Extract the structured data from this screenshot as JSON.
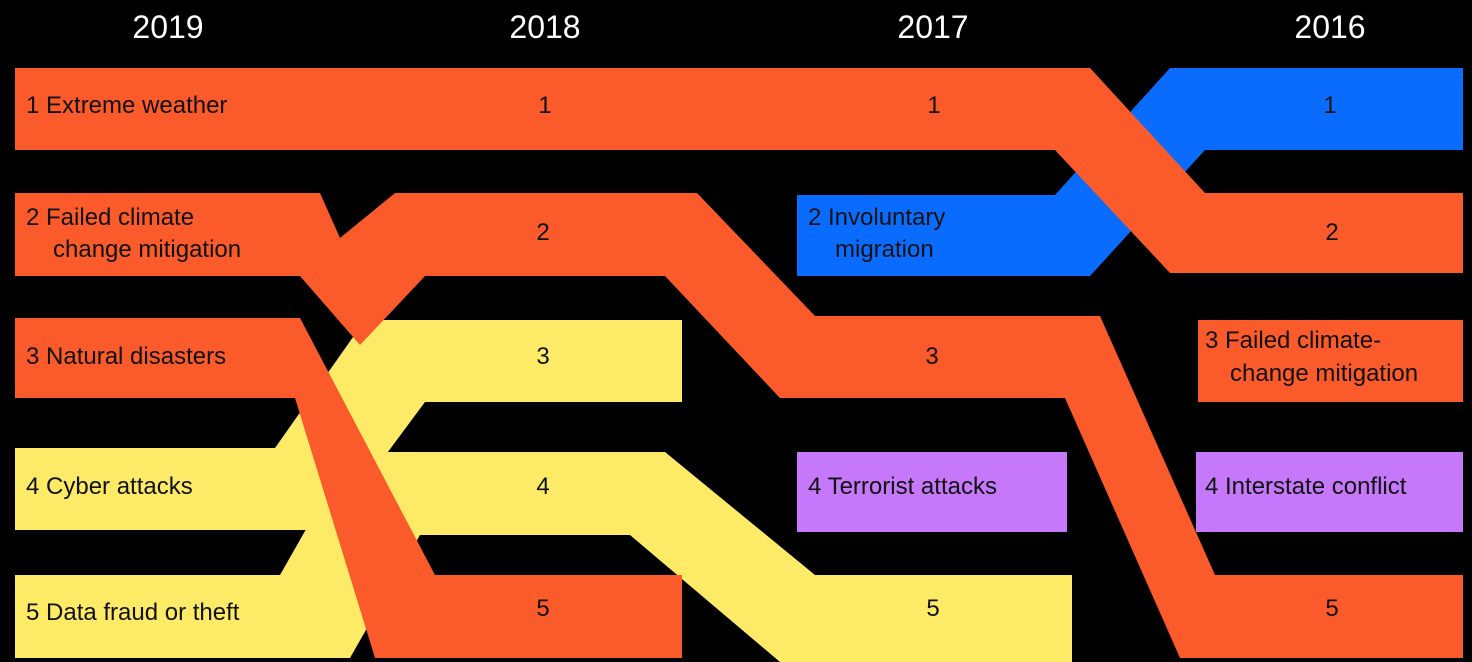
{
  "years": [
    "2019",
    "2018",
    "2017",
    "2016"
  ],
  "colors": {
    "background": "#000000",
    "environmental": "#FB5A2A",
    "societal": "#0A6CFF",
    "technological": "#FDEA66",
    "geopolitical": "#C678FB",
    "text_dark": "#111111",
    "text_light": "#FFFFFF"
  },
  "ranks": [
    "1",
    "2",
    "3",
    "4",
    "5"
  ],
  "labels": {
    "y2019": {
      "r1": [
        "1  Extreme weather"
      ],
      "r2": [
        "2 Failed climate",
        "change mitigation"
      ],
      "r3": [
        "3 Natural disasters"
      ],
      "r4": [
        "4 Cyber attacks"
      ],
      "r5": [
        "5 Data fraud or theft"
      ]
    },
    "y2017": {
      "r2": [
        "2 Involuntary",
        "migration"
      ],
      "r4": [
        "4 Terrorist attacks"
      ]
    },
    "y2016": {
      "r3": [
        "3 Failed climate-",
        "change mitigation"
      ],
      "r4": [
        "4 Interstate conflict"
      ]
    }
  }
}
